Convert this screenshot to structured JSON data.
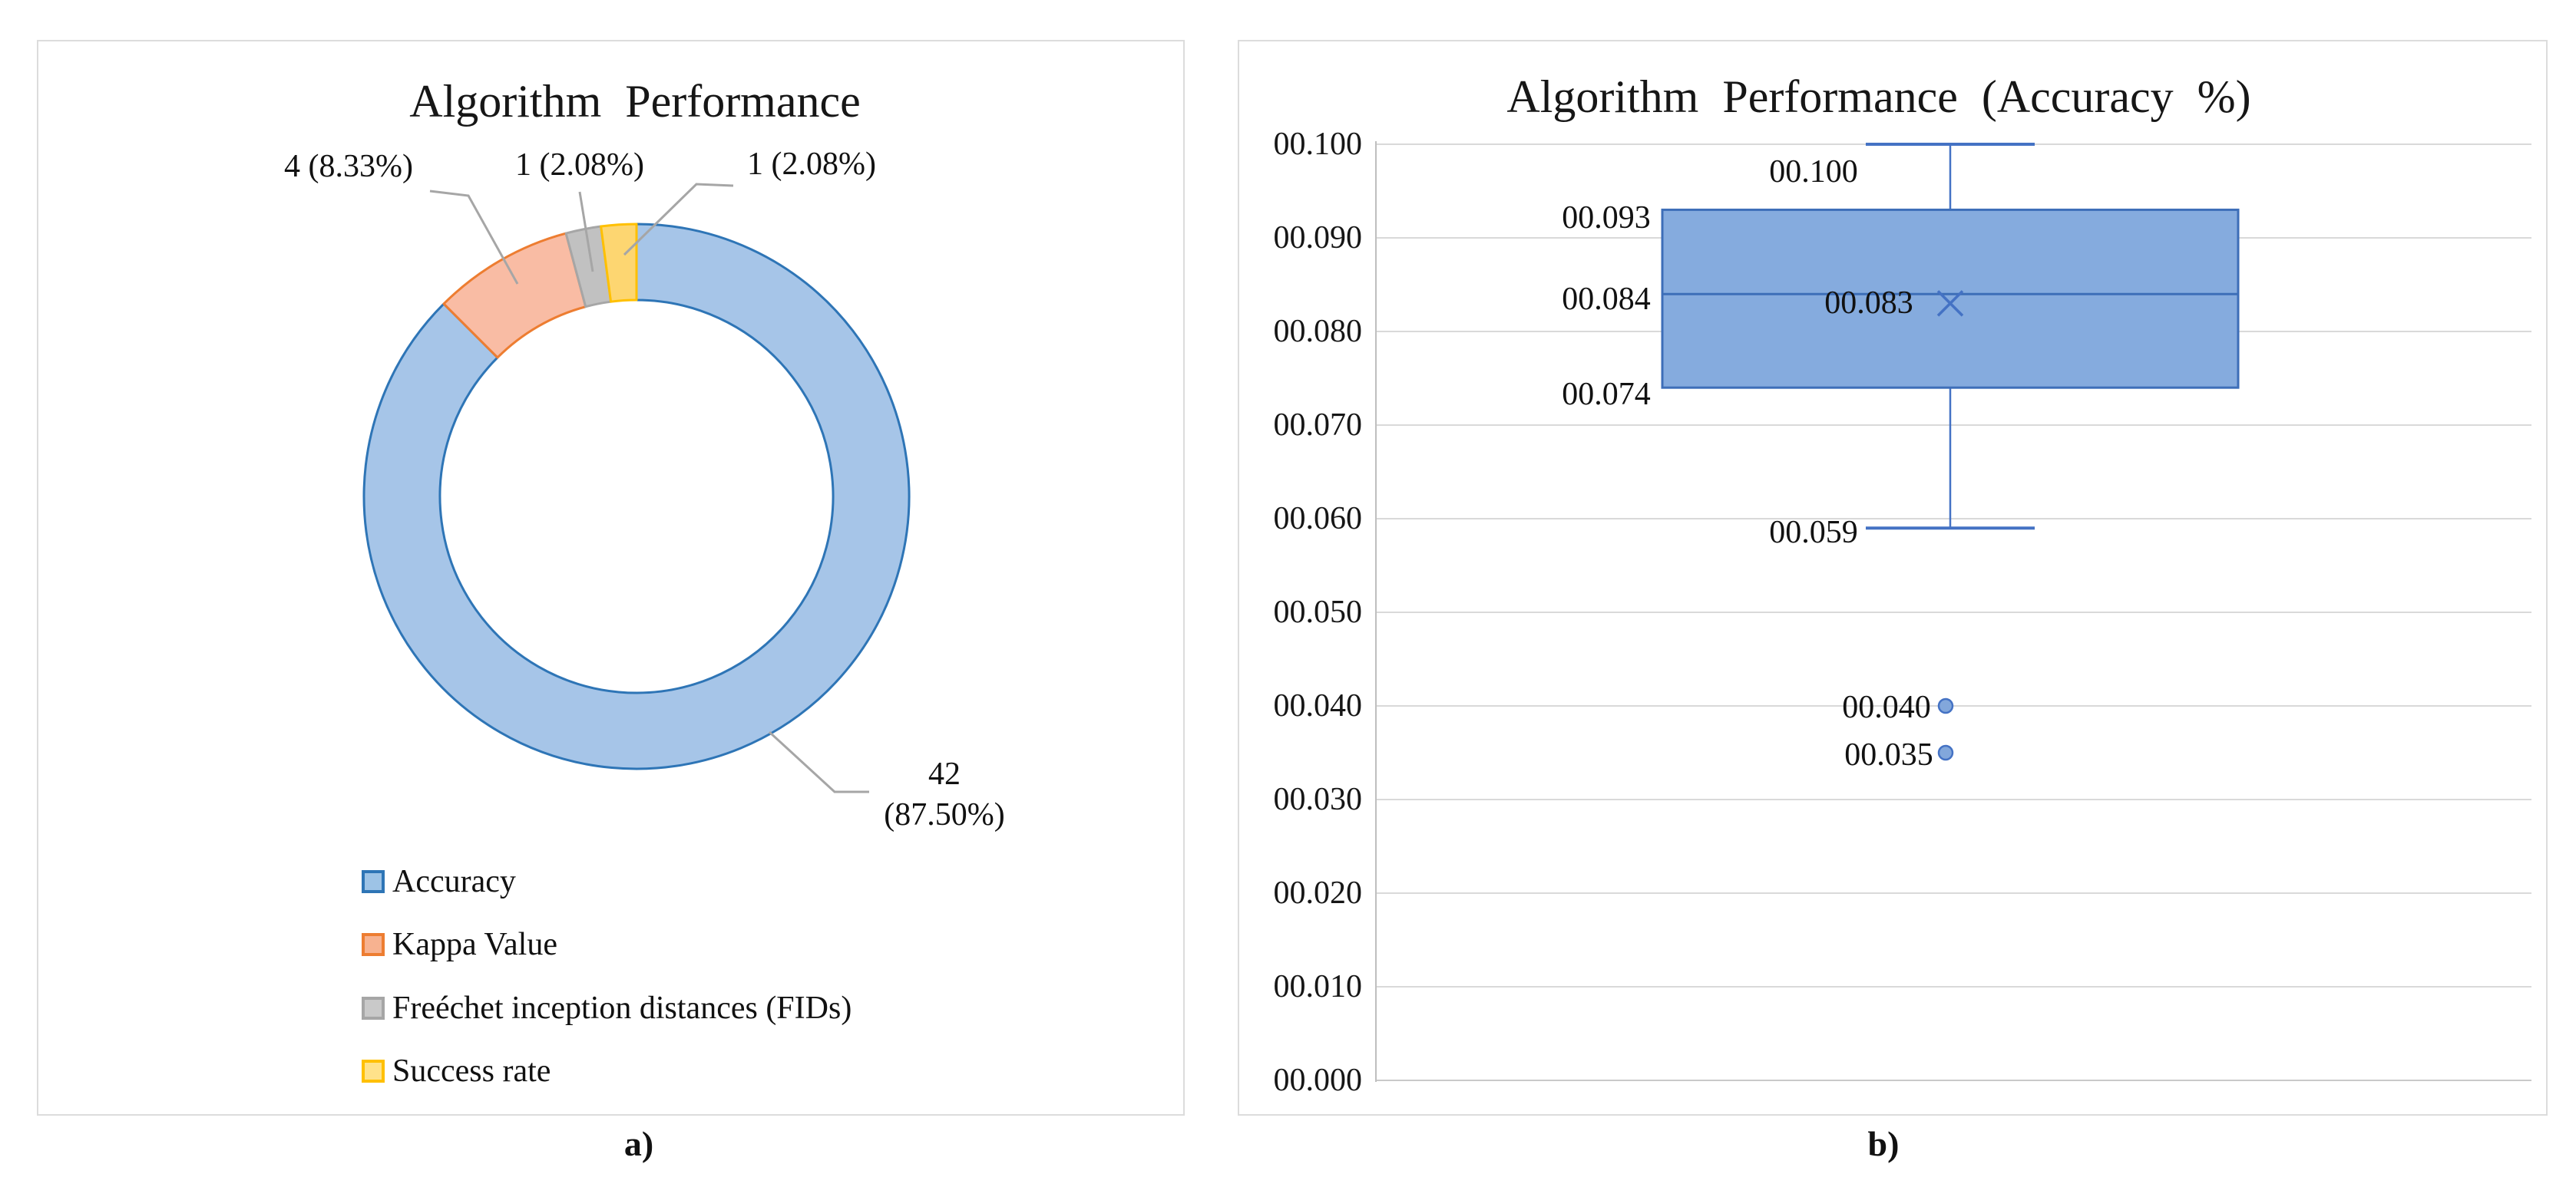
{
  "figure": {
    "panel_a_label": "a)",
    "panel_b_label": "b)"
  },
  "chart_data": [
    {
      "type": "pie",
      "subtype": "doughnut",
      "title": "Algorithm Performance",
      "categories": [
        "Accuracy",
        "Kappa Value",
        "Freéchet inception distances (FIDs)",
        "Success rate"
      ],
      "values": [
        42,
        4,
        1,
        1
      ],
      "percents": [
        87.5,
        8.33,
        2.08,
        2.08
      ],
      "slice_labels": [
        "42 (87.50%)",
        "4 (8.33%)",
        "1 (2.08%)",
        "1 (2.08%)"
      ],
      "start_angle_deg": 0,
      "clockwise": true,
      "hole_ratio": 0.72,
      "legend_position": "bottom-left",
      "colors": {
        "fill": [
          "#a6c5e8",
          "#f9bca4",
          "#c1c1c1",
          "#fdd671"
        ],
        "border": [
          "#2e75b6",
          "#ed7d31",
          "#a6a6a6",
          "#ffc000"
        ],
        "legend_fill": [
          "#9dc3e6",
          "#f7b290",
          "#c9c9c9",
          "#ffe28a"
        ],
        "leader_line": "#a6a6a6"
      },
      "callouts": {
        "kappa": "4 (8.33%)",
        "fids": "1 (2.08%)",
        "success": "1 (2.08%)",
        "accuracy_line1": "42",
        "accuracy_line2": "(87.50%)"
      }
    },
    {
      "type": "box",
      "title": "Algorithm Performance (Accuracy %)",
      "ylim": [
        0.0,
        0.1
      ],
      "ytick_step": 0.01,
      "ytick_labels": [
        "00.100",
        "00.090",
        "00.080",
        "00.070",
        "00.060",
        "00.050",
        "00.040",
        "00.030",
        "00.020",
        "00.010",
        "00.000"
      ],
      "grid": true,
      "box": {
        "whisker_high": 0.1,
        "q3": 0.093,
        "median": 0.084,
        "mean": 0.083,
        "q1": 0.074,
        "whisker_low": 0.059,
        "outliers": [
          0.04,
          0.035
        ]
      },
      "point_labels": {
        "whisker_high": "00.100",
        "q3": "00.093",
        "median": "00.084",
        "mean": "00.083",
        "q1": "00.074",
        "whisker_low": "00.059",
        "outlier_1": "00.040",
        "outlier_2": "00.035"
      },
      "colors": {
        "box_fill": "#85abde",
        "box_border": "#3d6eb8",
        "whisker": "#4472c4",
        "mean_marker": "#4472c4",
        "outlier_fill": "#82a7db",
        "outlier_border": "#4472c4",
        "gridline": "#d9d9d9",
        "axis_line": "#bfbfbf"
      }
    }
  ]
}
